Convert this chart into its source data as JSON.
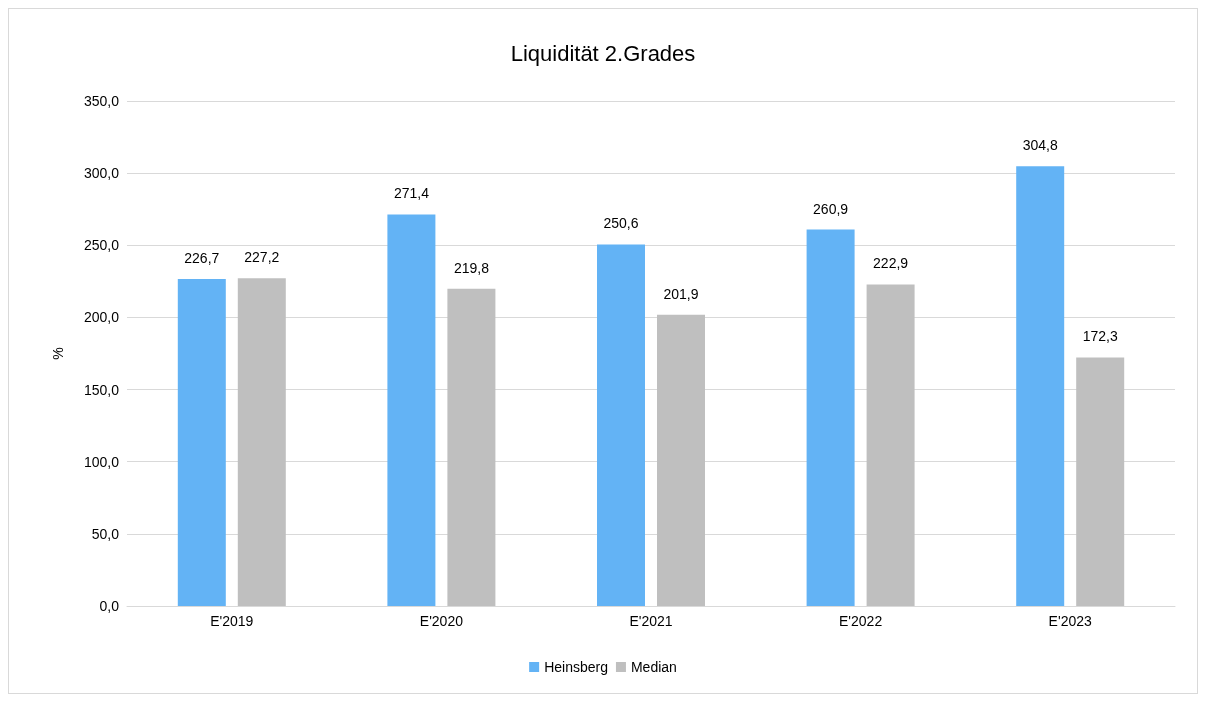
{
  "chart_data": {
    "type": "bar",
    "title": "Liquidität 2.Grades",
    "ylabel": "%",
    "categories": [
      "E'2019",
      "E'2020",
      "E'2021",
      "E'2022",
      "E'2023"
    ],
    "series": [
      {
        "name": "Heinsberg",
        "color": "#63b3f5",
        "values": [
          226.7,
          271.4,
          250.6,
          260.9,
          304.8
        ],
        "value_labels": [
          "226,7",
          "271,4",
          "250,6",
          "260,9",
          "304,8"
        ]
      },
      {
        "name": "Median",
        "color": "#bfbfbf",
        "values": [
          227.2,
          219.8,
          201.9,
          222.9,
          172.3
        ],
        "value_labels": [
          "227,2",
          "219,8",
          "201,9",
          "222,9",
          "172,3"
        ]
      }
    ],
    "ylim": [
      0,
      350
    ],
    "yticks": [
      {
        "value": 0,
        "label": "0,0"
      },
      {
        "value": 50,
        "label": "50,0"
      },
      {
        "value": 100,
        "label": "100,0"
      },
      {
        "value": 150,
        "label": "150,0"
      },
      {
        "value": 200,
        "label": "200,0"
      },
      {
        "value": 250,
        "label": "250,0"
      },
      {
        "value": 300,
        "label": "300,0"
      },
      {
        "value": 350,
        "label": "350,0"
      }
    ],
    "grid": "y",
    "legend": "bottom"
  }
}
